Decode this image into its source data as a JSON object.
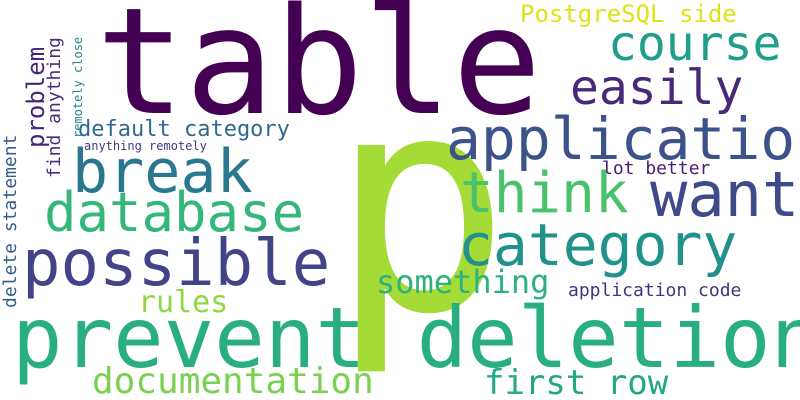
{
  "words": [
    {
      "text": "table",
      "color": "#440154"
    },
    {
      "text": "p",
      "color": "#a5db36"
    },
    {
      "text": "prevent deletion",
      "color": "#29af7f"
    },
    {
      "text": "application",
      "color": "#3b528b"
    },
    {
      "text": "category",
      "color": "#21918c"
    },
    {
      "text": "possible",
      "color": "#414487"
    },
    {
      "text": "database",
      "color": "#35b779"
    },
    {
      "text": "break",
      "color": "#2a788e"
    },
    {
      "text": "want",
      "color": "#3e4a89"
    },
    {
      "text": "think",
      "color": "#4ac16d"
    },
    {
      "text": "course",
      "color": "#1f9e89"
    },
    {
      "text": "easily",
      "color": "#482878"
    },
    {
      "text": "documentation",
      "color": "#7ad151"
    },
    {
      "text": "first row",
      "color": "#22a884"
    },
    {
      "text": "something",
      "color": "#2db27d"
    },
    {
      "text": "rules",
      "color": "#8fd744"
    },
    {
      "text": "PostgreSQL side",
      "color": "#dde318"
    },
    {
      "text": "default category",
      "color": "#31688e"
    },
    {
      "text": "lot better",
      "color": "#481f70"
    },
    {
      "text": "application code",
      "color": "#46337f"
    },
    {
      "text": "problem",
      "color": "#482475"
    },
    {
      "text": "find anything",
      "color": "#472d7b"
    },
    {
      "text": "delete statement",
      "color": "#365c8d"
    },
    {
      "text": "anything remotely",
      "color": "#443983"
    },
    {
      "text": "remotely close",
      "color": "#26828e"
    }
  ]
}
